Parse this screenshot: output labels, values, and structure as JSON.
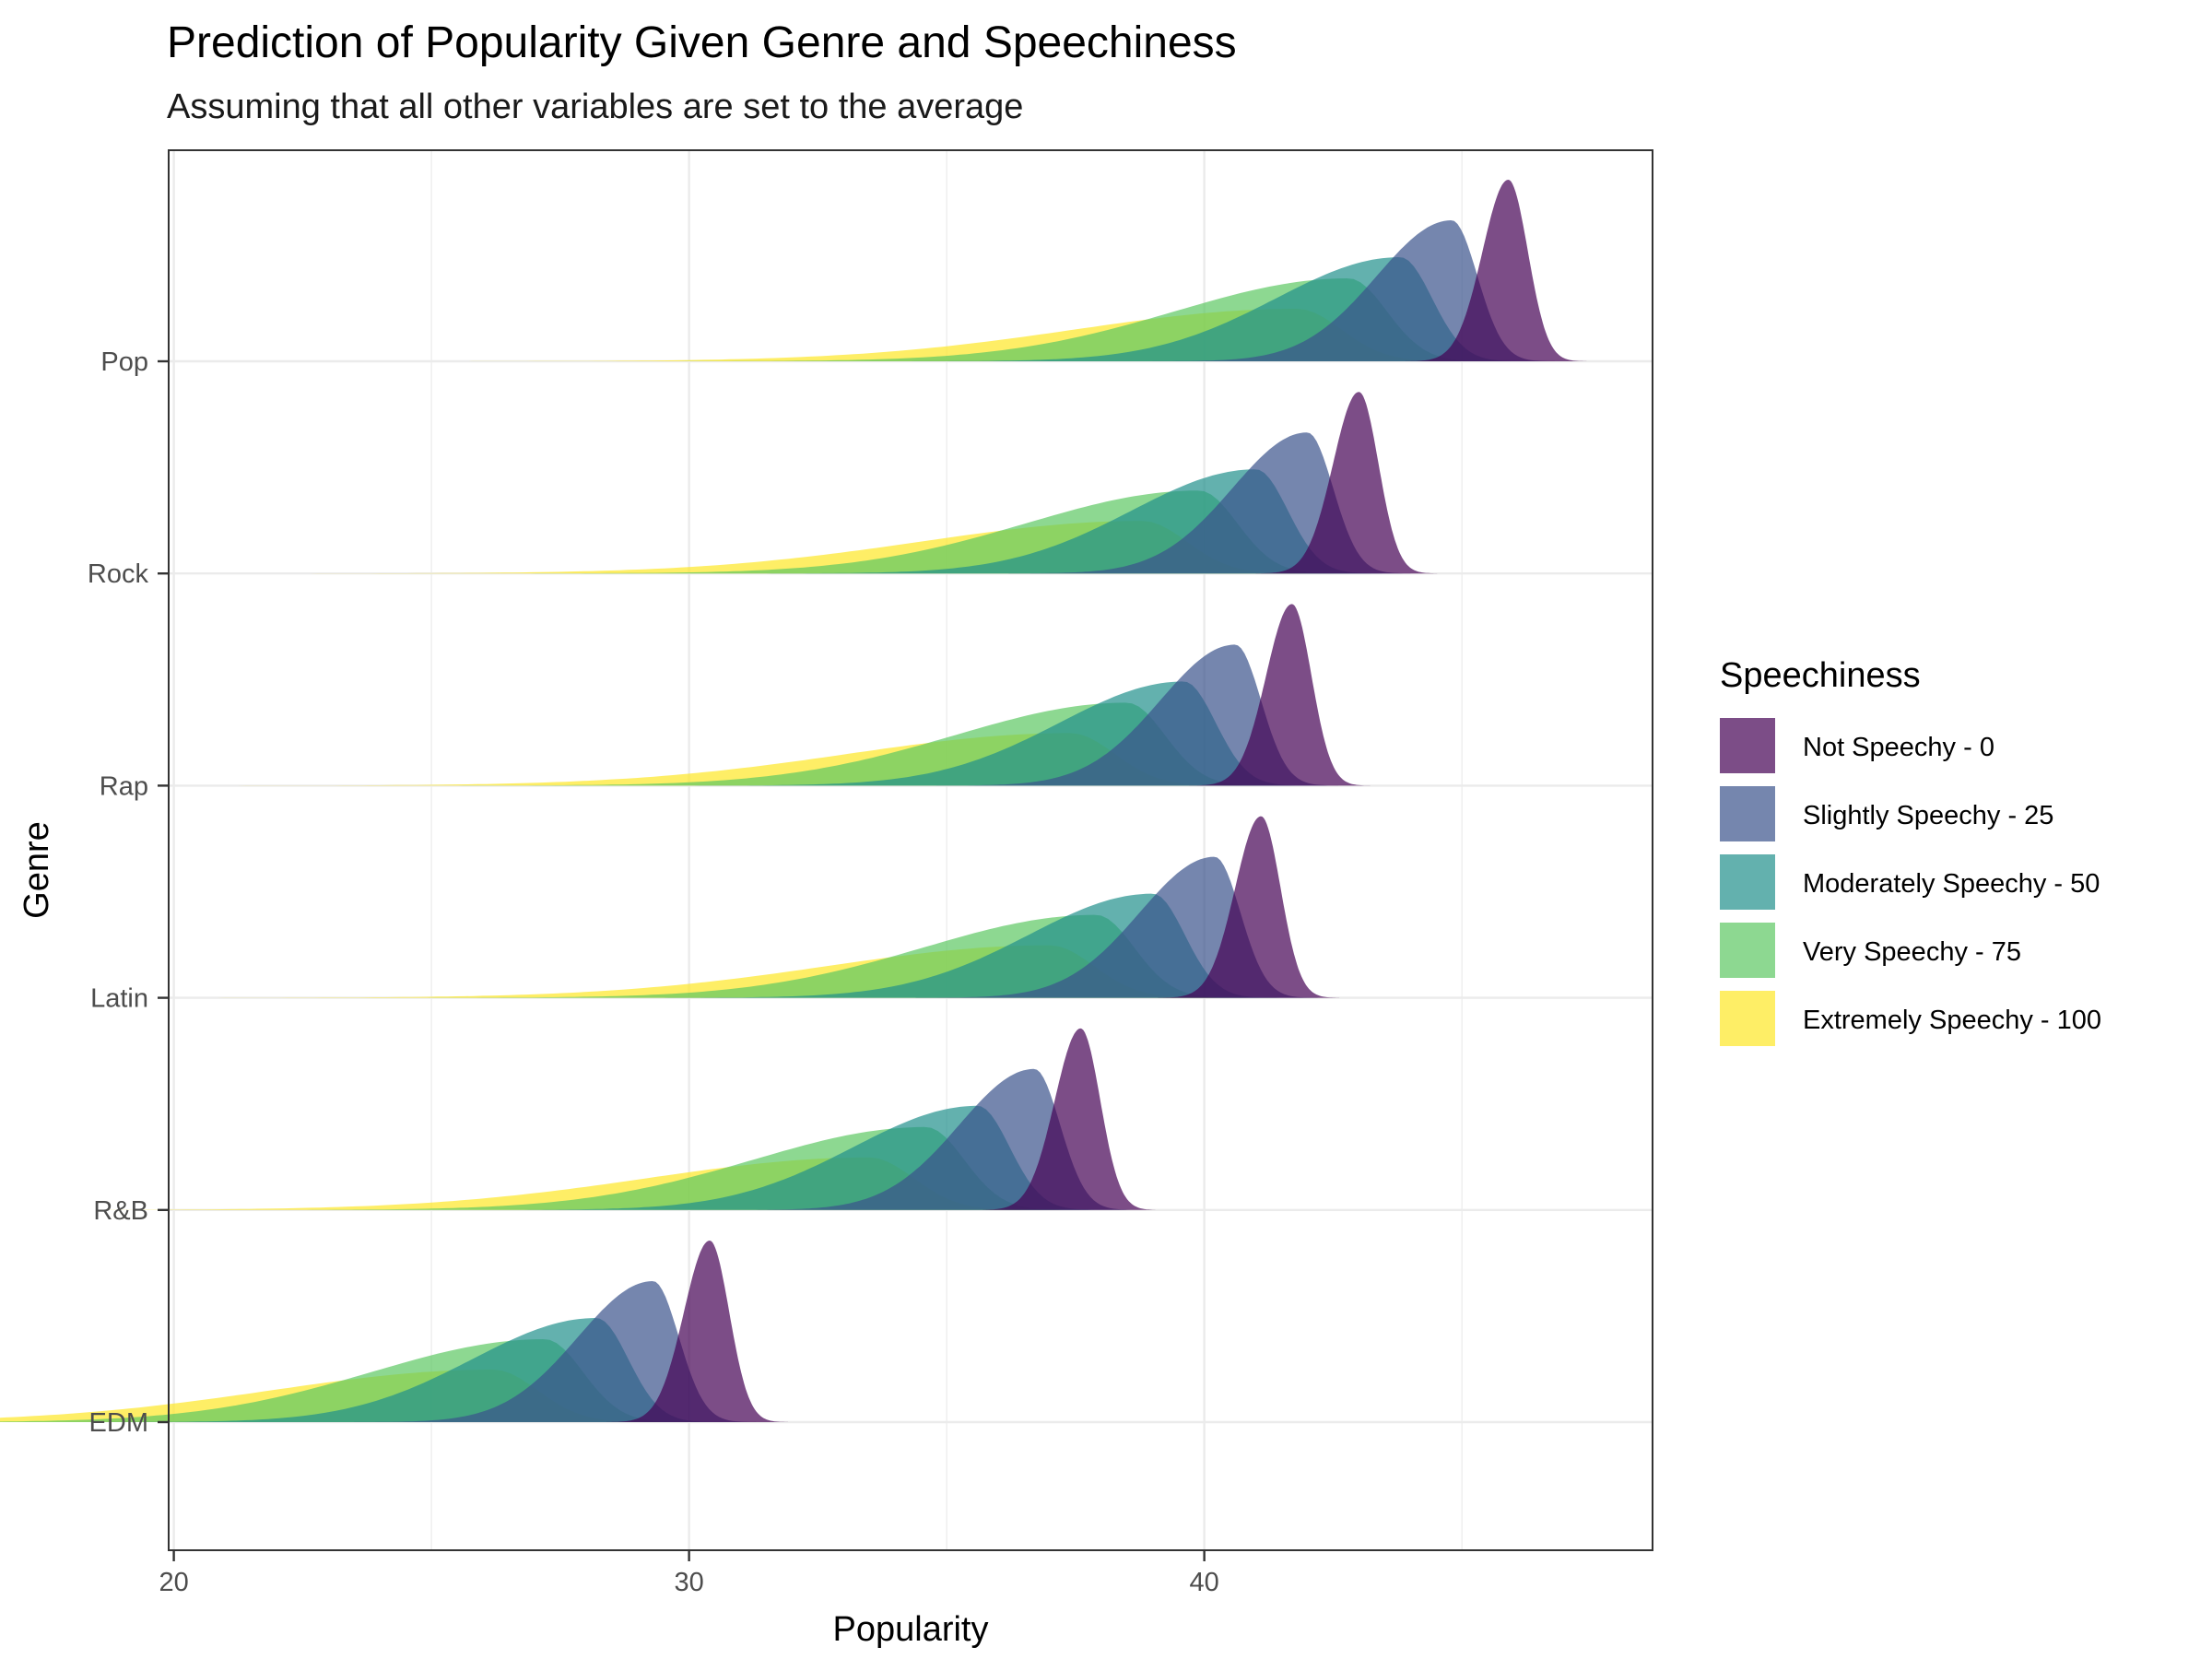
{
  "chart_data": {
    "type": "ridgeline-density",
    "title": "Prediction of Popularity Given Genre and Speechiness",
    "subtitle": "Assuming that all other variables are set to the average",
    "xlabel": "Popularity",
    "ylabel": "Genre",
    "xlim": [
      19.9,
      48.7
    ],
    "x_ticks": [
      20,
      30,
      40
    ],
    "categories": [
      "Pop",
      "Rock",
      "Rap",
      "Latin",
      "R&B",
      "EDM"
    ],
    "grid": true,
    "legend": {
      "title": "Speechiness",
      "position": "right"
    },
    "series": [
      {
        "name": "Not Speechy - 0",
        "color": "#440154",
        "peaks": {
          "Pop": 45.9,
          "Rock": 43.0,
          "Rap": 41.7,
          "Latin": 41.1,
          "R&B": 37.6,
          "EDM": 30.4
        }
      },
      {
        "name": "Slightly Speechy - 25",
        "color": "#3B528B",
        "peaks": {
          "Pop": 44.8,
          "Rock": 42.0,
          "Rap": 40.6,
          "Latin": 40.2,
          "R&B": 36.7,
          "EDM": 29.3
        }
      },
      {
        "name": "Moderately Speechy - 50",
        "color": "#21908C",
        "peaks": {
          "Pop": 43.8,
          "Rock": 41.0,
          "Rap": 39.6,
          "Latin": 39.0,
          "R&B": 35.6,
          "EDM": 28.2
        }
      },
      {
        "name": "Very Speechy - 75",
        "color": "#5DC863",
        "peaks": {
          "Pop": 42.8,
          "Rock": 39.9,
          "Rap": 38.5,
          "Latin": 37.9,
          "R&B": 34.6,
          "EDM": 27.2
        }
      },
      {
        "name": "Extremely Speechy - 100",
        "color": "#FDE725",
        "peaks": {
          "Pop": 41.8,
          "Rock": 38.8,
          "Rap": 37.4,
          "Latin": 37.0,
          "R&B": 33.5,
          "EDM": 26.2
        }
      }
    ]
  }
}
